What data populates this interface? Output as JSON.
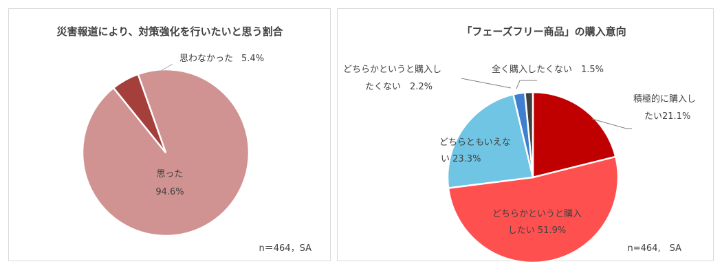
{
  "chart_data": [
    {
      "type": "pie",
      "title": "災害報道により、対策強化を行いたいと思う割合",
      "slices": [
        {
          "label": "思った",
          "value": 94.6,
          "value_text": "94.6%",
          "color": "#d09392"
        },
        {
          "label": "思わなかった",
          "value": 5.4,
          "value_text": "5.4%",
          "color": "#a43f3c"
        }
      ],
      "note": "n＝464，SA"
    },
    {
      "type": "pie",
      "title": "「フェーズフリー商品」の購入意向",
      "slices": [
        {
          "label": "積極的に購入したい",
          "value": 21.1,
          "text_lines": [
            "積極的に購入し",
            "たい21.1%"
          ],
          "color": "#c00000"
        },
        {
          "label": "どちらかというと購入したい",
          "value": 51.9,
          "text_lines": [
            "どちらかというと購入",
            "したい 51.9%"
          ],
          "color": "#ff5050"
        },
        {
          "label": "どちらともいえない",
          "value": 23.3,
          "text_lines": [
            "どちらともいえな",
            "い 23.3%"
          ],
          "color": "#70c4e4"
        },
        {
          "label": "どちらかというと購入したくない",
          "value": 2.2,
          "text_lines": [
            "どちらかというと購入し",
            "たくない　2.2%"
          ],
          "color": "#3f7fd0"
        },
        {
          "label": "全く購入したくない",
          "value": 1.5,
          "text_lines": [
            "全く購入したくない　1.5%"
          ],
          "color": "#404040"
        }
      ],
      "note": "n=464,　SA"
    }
  ]
}
